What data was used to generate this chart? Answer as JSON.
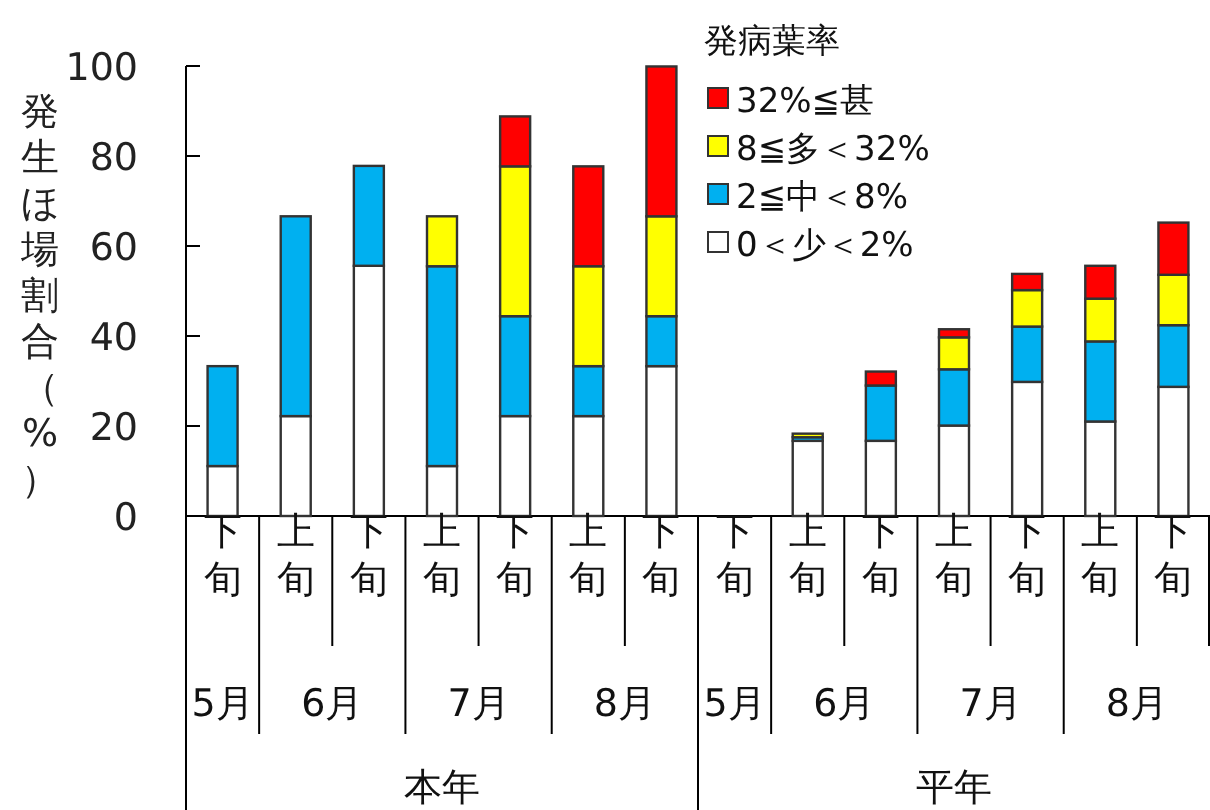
{
  "chart_data": {
    "type": "bar",
    "stacked": true,
    "ylabel": "発生ほ場割合（%）",
    "legend_title": "発病葉率",
    "legend": "top right",
    "categories": [
      "下旬",
      "上旬",
      "下旬",
      "上旬",
      "下旬",
      "上旬",
      "下旬",
      "下旬",
      "上旬",
      "下旬",
      "上旬",
      "下旬",
      "上旬",
      "下旬"
    ],
    "series": [
      {
        "name": "0＜少＜2%",
        "color": "#ffffff",
        "values": [
          11.1,
          22.2,
          55.6,
          11.1,
          22.2,
          22.2,
          33.3,
          null,
          16.7,
          16.7,
          20.1,
          29.8,
          21.0,
          28.7
        ]
      },
      {
        "name": "2≦中＜8%",
        "color": "#00b0f0",
        "values": [
          22.2,
          44.4,
          22.2,
          44.4,
          22.2,
          11.1,
          11.1,
          null,
          0.8,
          12.3,
          12.5,
          12.3,
          17.8,
          13.7
        ]
      },
      {
        "name": "8≦多＜32%",
        "color": "#ffff00",
        "values": [
          null,
          null,
          null,
          11.1,
          33.3,
          22.2,
          22.2,
          null,
          0.8,
          null,
          7.1,
          8.1,
          9.5,
          11.2
        ]
      },
      {
        "name": "32%≦甚",
        "color": "#ff0000",
        "values": [
          null,
          null,
          null,
          null,
          11.1,
          22.2,
          33.3,
          null,
          null,
          3.1,
          1.8,
          3.6,
          7.3,
          11.6
        ]
      }
    ],
    "ylim": [
      0,
      100
    ],
    "yticks": [
      0,
      20,
      40,
      60,
      80,
      100
    ],
    "annotations": [
      "5月",
      "6月",
      "7月",
      "8月",
      "5月",
      "6月",
      "7月",
      "8月",
      "本年",
      "平年"
    ]
  }
}
